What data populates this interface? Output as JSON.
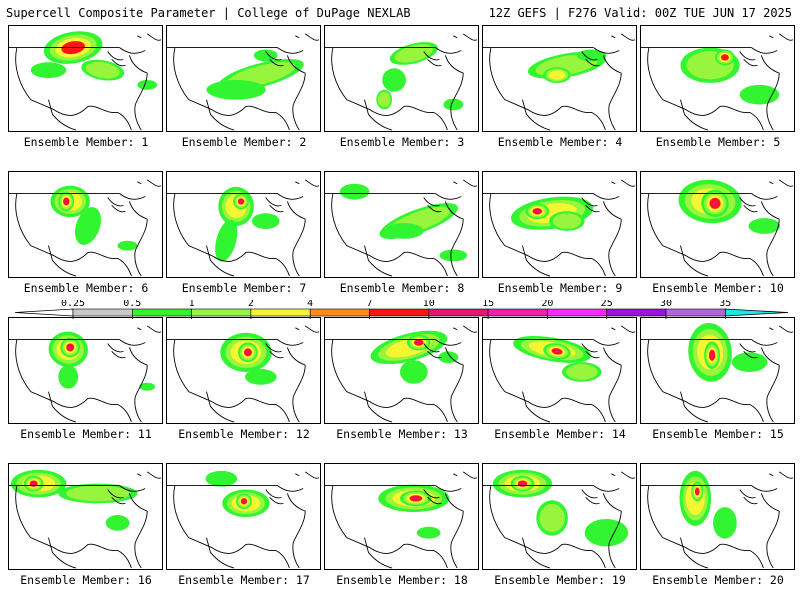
{
  "header": {
    "left": "Supercell Composite Parameter | College of DuPage NEXLAB",
    "right": "12Z GEFS | F276 Valid: 00Z TUE JUN 17 2025"
  },
  "colorbar": {
    "ticks": [
      "0.25",
      "0.5",
      "1",
      "2",
      "4",
      "7",
      "10",
      "15",
      "20",
      "25",
      "30",
      "35"
    ],
    "colors": [
      "#c8c8c8",
      "#32f532",
      "#96f53c",
      "#f5f532",
      "#ff8c1e",
      "#ff1414",
      "#e61473",
      "#f51eaa",
      "#ff28ff",
      "#9614e6",
      "#b464dc",
      "#1ee6e6"
    ]
  },
  "members": [
    {
      "label": "Ensemble Member: 1"
    },
    {
      "label": "Ensemble Member: 2"
    },
    {
      "label": "Ensemble Member: 3"
    },
    {
      "label": "Ensemble Member: 4"
    },
    {
      "label": "Ensemble Member: 5"
    },
    {
      "label": "Ensemble Member: 6"
    },
    {
      "label": "Ensemble Member: 7"
    },
    {
      "label": "Ensemble Member: 8"
    },
    {
      "label": "Ensemble Member: 9"
    },
    {
      "label": "Ensemble Member: 10"
    },
    {
      "label": "Ensemble Member: 11"
    },
    {
      "label": "Ensemble Member: 12"
    },
    {
      "label": "Ensemble Member: 13"
    },
    {
      "label": "Ensemble Member: 14"
    },
    {
      "label": "Ensemble Member: 15"
    },
    {
      "label": "Ensemble Member: 16"
    },
    {
      "label": "Ensemble Member: 17"
    },
    {
      "label": "Ensemble Member: 18"
    },
    {
      "label": "Ensemble Member: 19"
    },
    {
      "label": "Ensemble Member: 20"
    }
  ]
}
